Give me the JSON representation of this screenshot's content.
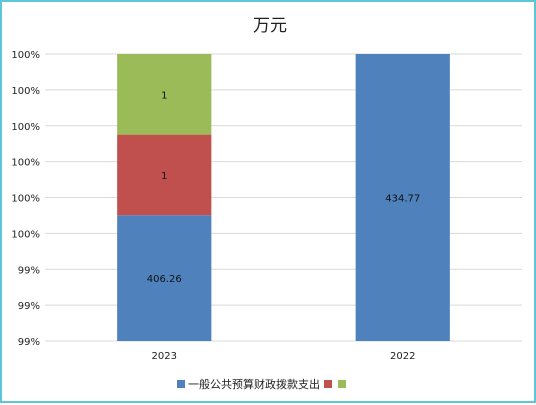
{
  "chart_data": {
    "type": "bar",
    "stacked": true,
    "percent_axis": true,
    "title": "万元",
    "categories": [
      "2023",
      "2022"
    ],
    "y_tick_labels": [
      "99%",
      "99%",
      "99%",
      "100%",
      "100%",
      "100%",
      "100%",
      "100%",
      "100%"
    ],
    "series": [
      {
        "name": "一般公共预算财政拨款支出",
        "color": "#4f81bd",
        "values": [
          406.26,
          434.77
        ],
        "labels": [
          "406.26",
          "434.77"
        ]
      },
      {
        "name": "",
        "color": "#c0504d",
        "values": [
          1,
          0
        ],
        "labels": [
          "1",
          ""
        ]
      },
      {
        "name": "",
        "color": "#9bbb59",
        "values": [
          1,
          0
        ],
        "labels": [
          "1",
          ""
        ]
      }
    ],
    "grid": true,
    "legend_position": "bottom"
  }
}
